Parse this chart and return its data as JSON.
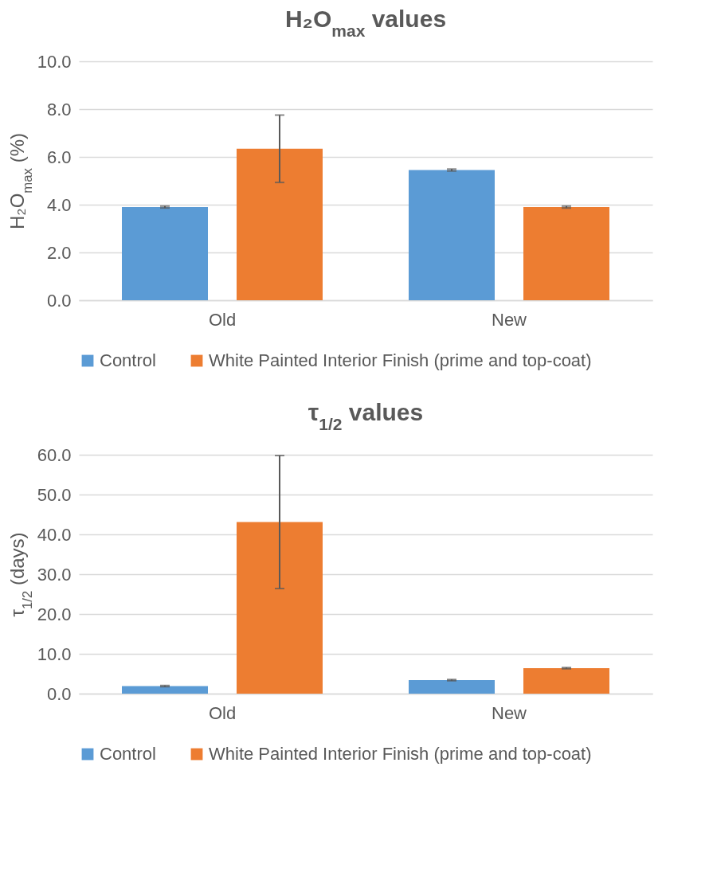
{
  "chart_data": [
    {
      "type": "bar",
      "title": "H₂O$_{max}$ values",
      "ylabel": "H₂O$_{max}$ (%)",
      "categories": [
        "Old",
        "New"
      ],
      "series": [
        {
          "name": "Control",
          "color": "#5b9bd5",
          "values": [
            3.9,
            5.45
          ],
          "errors": [
            0.04,
            0.04
          ]
        },
        {
          "name": "White Painted Interior Finish (prime and top-coat)",
          "color": "#ed7d31",
          "values": [
            6.34,
            3.9
          ],
          "errors": [
            1.41,
            0.04
          ]
        }
      ],
      "ylim": [
        0,
        10
      ],
      "yticks": [
        {
          "value": 0,
          "label": "0.0"
        },
        {
          "value": 2,
          "label": "2.0"
        },
        {
          "value": 4,
          "label": "4.0"
        },
        {
          "value": 6,
          "label": "6.0"
        },
        {
          "value": 8,
          "label": "8.0"
        },
        {
          "value": 10,
          "label": "10.0"
        }
      ],
      "grid": "y",
      "legend": "bottom"
    },
    {
      "type": "bar",
      "title": "τ$_{1/2}$ values",
      "ylabel": "τ$_{1/2}$ (days)",
      "categories": [
        "Old",
        "New"
      ],
      "series": [
        {
          "name": "Control",
          "color": "#5b9bd5",
          "values": [
            1.9,
            3.4
          ],
          "errors": [
            0.15,
            0.15
          ]
        },
        {
          "name": "White Painted Interior Finish (prime and top-coat)",
          "color": "#ed7d31",
          "values": [
            43.1,
            6.4
          ],
          "errors": [
            16.7,
            0.15
          ]
        }
      ],
      "ylim": [
        0,
        60
      ],
      "yticks": [
        {
          "value": 0,
          "label": "0.0"
        },
        {
          "value": 10,
          "label": "10.0"
        },
        {
          "value": 20,
          "label": "20.0"
        },
        {
          "value": 30,
          "label": "30.0"
        },
        {
          "value": 40,
          "label": "40.0"
        },
        {
          "value": 50,
          "label": "50.0"
        },
        {
          "value": 60,
          "label": "60.0"
        }
      ],
      "grid": "y",
      "legend": "bottom"
    }
  ]
}
